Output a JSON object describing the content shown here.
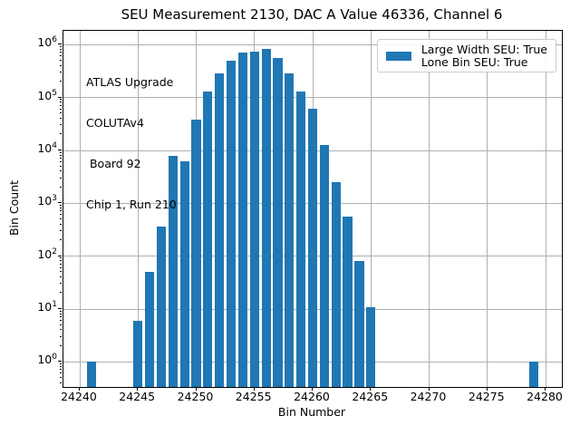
{
  "figure": {
    "title": "SEU Measurement 2130, DAC A Value 46336, Channel 6",
    "xlabel": "Bin Number",
    "ylabel": "Bin Count"
  },
  "annotation": {
    "lines": [
      "ATLAS Upgrade",
      "COLUTAv4",
      " Board 92",
      "Chip 1, Run 210"
    ]
  },
  "legend": {
    "lines": [
      "Large Width SEU: True",
      "Lone Bin SEU: True"
    ],
    "position": "upper right"
  },
  "colors": {
    "bar": "#1f77b4",
    "grid": "#b0b0b0",
    "text": "#000000",
    "legend_border": "#cccccc"
  },
  "chart_data": {
    "type": "bar",
    "title": "SEU Measurement 2130, DAC A Value 46336, Channel 6",
    "xlabel": "Bin Number",
    "ylabel": "Bin Count",
    "yscale": "log",
    "grid": true,
    "legend_position": "upper right",
    "legend_label_lines": [
      "Large Width SEU: True",
      "Lone Bin SEU: True"
    ],
    "annotation_lines": [
      "ATLAS Upgrade",
      "COLUTAv4",
      " Board 92",
      "Chip 1, Run 210"
    ],
    "x": [
      24241,
      24245,
      24246,
      24247,
      24248,
      24249,
      24250,
      24251,
      24252,
      24253,
      24254,
      24255,
      24256,
      24257,
      24258,
      24259,
      24260,
      24261,
      24262,
      24263,
      24264,
      24265,
      24279
    ],
    "values": [
      1,
      6,
      50,
      370,
      7800,
      6300,
      39000,
      128000,
      285000,
      495000,
      715000,
      750000,
      845000,
      550000,
      285000,
      132000,
      61000,
      12500,
      2550,
      560,
      80,
      11,
      1
    ],
    "bar_width": 0.8,
    "bar_color": "#1f77b4",
    "xlim": [
      24238.6,
      24281.4
    ],
    "ylim_exp": [
      -0.475,
      6.262
    ],
    "x_ticks": [
      24240,
      24245,
      24250,
      24255,
      24260,
      24265,
      24270,
      24275,
      24280
    ],
    "y_tick_exponents": [
      0,
      1,
      2,
      3,
      4,
      5,
      6
    ]
  }
}
